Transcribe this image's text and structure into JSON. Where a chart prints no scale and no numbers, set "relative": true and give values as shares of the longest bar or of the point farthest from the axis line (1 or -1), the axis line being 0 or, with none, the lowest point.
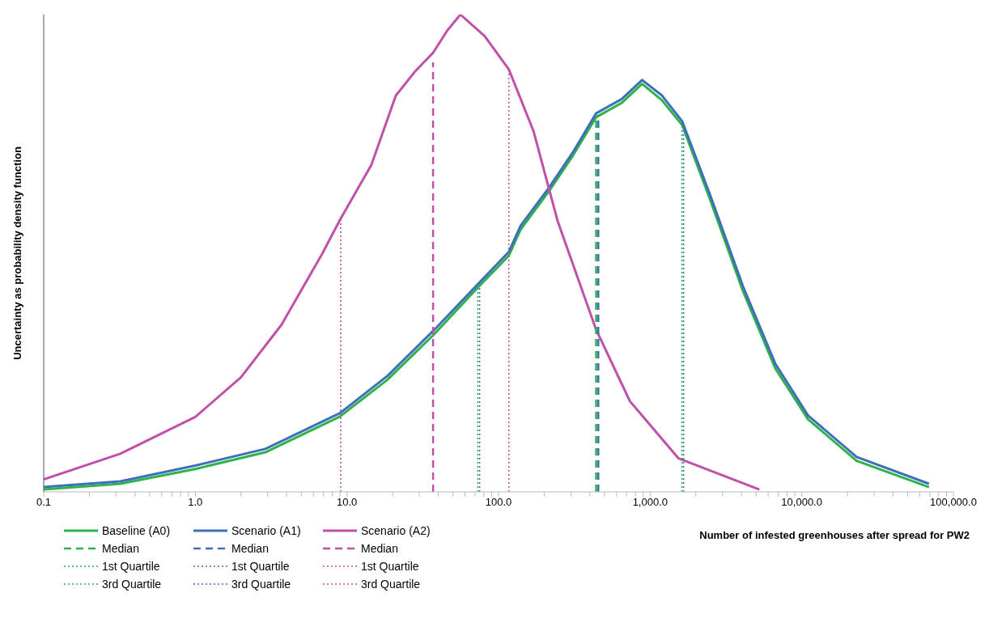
{
  "chart_data": {
    "type": "line",
    "relative": true,
    "log": "x",
    "grid": false,
    "legend": "bottom left",
    "marker": "none",
    "xlabel": "Number of infested greenhouses after spread for PW2",
    "ylabel": "Uncertainty as  probability density function",
    "xlim": [
      0.1,
      100000
    ],
    "xticks": [
      {
        "value": 0.1,
        "label": "0.1"
      },
      {
        "value": 0.2,
        "label": null
      },
      {
        "value": 0.3,
        "label": null
      },
      {
        "value": 0.4,
        "label": null
      },
      {
        "value": 0.5,
        "label": null
      },
      {
        "value": 0.6,
        "label": null
      },
      {
        "value": 0.7,
        "label": null
      },
      {
        "value": 0.8,
        "label": null
      },
      {
        "value": 0.9,
        "label": null
      },
      {
        "value": 1,
        "label": "1.0"
      },
      {
        "value": 2,
        "label": null
      },
      {
        "value": 3,
        "label": null
      },
      {
        "value": 4,
        "label": null
      },
      {
        "value": 5,
        "label": null
      },
      {
        "value": 6,
        "label": null
      },
      {
        "value": 7,
        "label": null
      },
      {
        "value": 8,
        "label": null
      },
      {
        "value": 9,
        "label": null
      },
      {
        "value": 10,
        "label": "10.0"
      },
      {
        "value": 20,
        "label": null
      },
      {
        "value": 30,
        "label": null
      },
      {
        "value": 40,
        "label": null
      },
      {
        "value": 50,
        "label": null
      },
      {
        "value": 60,
        "label": null
      },
      {
        "value": 70,
        "label": null
      },
      {
        "value": 80,
        "label": null
      },
      {
        "value": 90,
        "label": null
      },
      {
        "value": 100,
        "label": "100.0"
      },
      {
        "value": 200,
        "label": null
      },
      {
        "value": 300,
        "label": null
      },
      {
        "value": 400,
        "label": null
      },
      {
        "value": 500,
        "label": null
      },
      {
        "value": 600,
        "label": null
      },
      {
        "value": 700,
        "label": null
      },
      {
        "value": 800,
        "label": null
      },
      {
        "value": 900,
        "label": null
      },
      {
        "value": 1000,
        "label": "1,000.0"
      },
      {
        "value": 2000,
        "label": null
      },
      {
        "value": 3000,
        "label": null
      },
      {
        "value": 4000,
        "label": null
      },
      {
        "value": 5000,
        "label": null
      },
      {
        "value": 6000,
        "label": null
      },
      {
        "value": 7000,
        "label": null
      },
      {
        "value": 8000,
        "label": null
      },
      {
        "value": 9000,
        "label": null
      },
      {
        "value": 10000,
        "label": "10,000.0"
      },
      {
        "value": 20000,
        "label": null
      },
      {
        "value": 30000,
        "label": null
      },
      {
        "value": 40000,
        "label": null
      },
      {
        "value": 50000,
        "label": null
      },
      {
        "value": 60000,
        "label": null
      },
      {
        "value": 70000,
        "label": null
      },
      {
        "value": 80000,
        "label": null
      },
      {
        "value": 90000,
        "label": null
      },
      {
        "value": 100000,
        "label": "100,000.0"
      }
    ],
    "series": [
      {
        "name": "Baseline (A0)",
        "color": "#2db34a",
        "line_style": "solid",
        "x": [
          0.1,
          0.32,
          1.0,
          2.9,
          9.0,
          18.5,
          37,
          73,
          117,
          140,
          215,
          310,
          440,
          650,
          885,
          1200,
          1630,
          2500,
          4100,
          6700,
          11000,
          23000,
          69000
        ],
        "values": [
          0.005,
          0.017,
          0.048,
          0.083,
          0.158,
          0.235,
          0.328,
          0.428,
          0.495,
          0.55,
          0.63,
          0.705,
          0.785,
          0.815,
          0.855,
          0.82,
          0.768,
          0.61,
          0.42,
          0.258,
          0.152,
          0.065,
          0.01
        ]
      },
      {
        "name": "Scenario (A1)",
        "color": "#3f6fb8",
        "line_style": "solid",
        "x": [
          0.1,
          0.32,
          1.0,
          2.9,
          9.0,
          18.5,
          37,
          73,
          117,
          140,
          215,
          310,
          440,
          650,
          885,
          1200,
          1630,
          2500,
          4100,
          6700,
          11000,
          23000,
          69000
        ],
        "values": [
          0.01,
          0.022,
          0.055,
          0.09,
          0.165,
          0.243,
          0.337,
          0.435,
          0.503,
          0.558,
          0.637,
          0.712,
          0.793,
          0.823,
          0.863,
          0.83,
          0.776,
          0.62,
          0.43,
          0.268,
          0.16,
          0.073,
          0.017
        ]
      },
      {
        "name": "Scenario (A2)",
        "color": "#c150a8",
        "line_style": "solid",
        "x": [
          0.1,
          0.32,
          1.0,
          2.0,
          3.7,
          6.9,
          9.0,
          14.5,
          21,
          28,
          37,
          46,
          56,
          81,
          117,
          170,
          245,
          440,
          735,
          1540,
          5250
        ],
        "values": [
          0.026,
          0.08,
          0.157,
          0.24,
          0.35,
          0.5,
          0.57,
          0.685,
          0.83,
          0.88,
          0.92,
          0.967,
          1.0,
          0.955,
          0.885,
          0.756,
          0.568,
          0.34,
          0.19,
          0.07,
          0.005
        ]
      },
      {
        "name": "Median",
        "color": "#2db34a",
        "line_style": "dashed",
        "x": [
          440,
          440
        ],
        "values": [
          0,
          0.79
        ]
      },
      {
        "name": "Median",
        "color": "#3f6fb8",
        "line_style": "dashed",
        "x": [
          455,
          455
        ],
        "values": [
          0,
          0.79
        ]
      },
      {
        "name": "Median",
        "color": "#c150a8",
        "line_style": "dashed",
        "x": [
          37,
          37
        ],
        "values": [
          0,
          0.9
        ]
      },
      {
        "name": "1st Quartile",
        "color": "#2db34a",
        "line_style": "dotted",
        "x": [
          73,
          73
        ],
        "values": [
          0,
          0.43
        ]
      },
      {
        "name": "1st Quartile",
        "color": "#3f6fb8",
        "line_style": "dotted",
        "x": [
          75,
          75
        ],
        "values": [
          0,
          0.43
        ]
      },
      {
        "name": "1st Quartile",
        "color": "#c150a8",
        "line_style": "dotted",
        "x": [
          9.1,
          9.1
        ],
        "values": [
          0,
          0.57
        ]
      },
      {
        "name": "3rd Quartile",
        "color": "#2db34a",
        "line_style": "dotted",
        "x": [
          1620,
          1620
        ],
        "values": [
          0,
          0.77
        ]
      },
      {
        "name": "3rd Quartile",
        "color": "#3f6fb8",
        "line_style": "dotted",
        "x": [
          1660,
          1660
        ],
        "values": [
          0,
          0.77
        ]
      },
      {
        "name": "3rd Quartile",
        "color": "#c150a8",
        "line_style": "dotted",
        "x": [
          117,
          117
        ],
        "values": [
          0,
          0.885
        ]
      }
    ]
  }
}
